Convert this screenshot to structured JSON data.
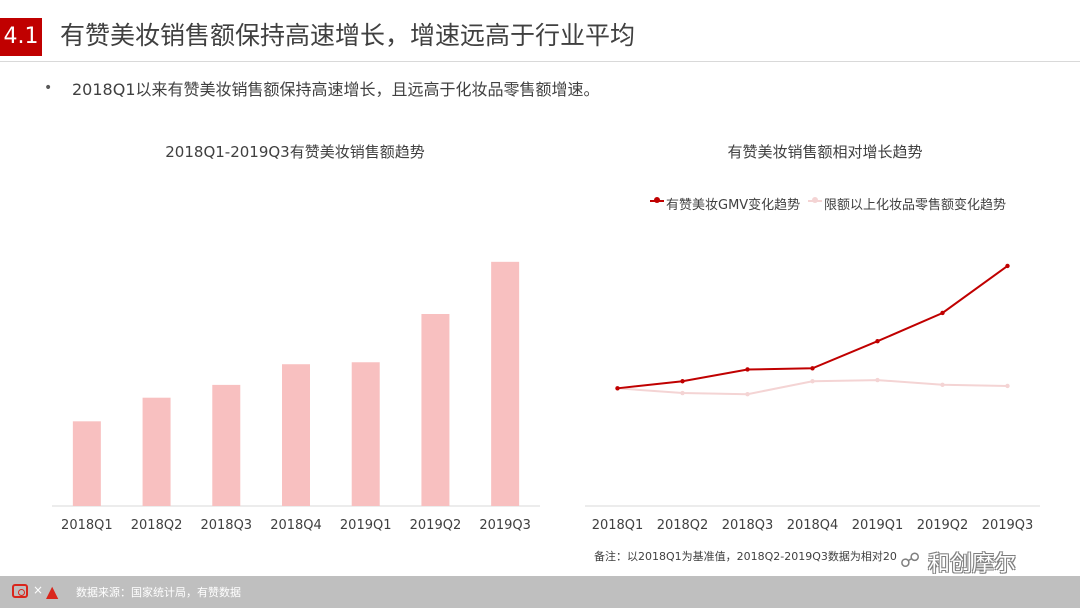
{
  "header": {
    "section_number": "4.1",
    "title": "有赞美妆销售额保持高速增长，增速远高于行业平均"
  },
  "bullet": {
    "dot": "•",
    "text": "2018Q1以来有赞美妆销售额保持高速增长，且远高于化妆品零售额增速。"
  },
  "chart_data": [
    {
      "type": "bar",
      "title": "2018Q1-2019Q3有赞美妆销售额趋势",
      "categories": [
        "2018Q1",
        "2018Q2",
        "2018Q3",
        "2018Q4",
        "2019Q1",
        "2019Q2",
        "2019Q3"
      ],
      "values": [
        86,
        110,
        123,
        144,
        146,
        195,
        248
      ],
      "ylim": [
        0,
        260
      ],
      "color": "#f8c0c0",
      "grid": false
    },
    {
      "type": "line",
      "title": "有赞美妆销售额相对增长趋势",
      "categories": [
        "2018Q1",
        "2018Q2",
        "2018Q3",
        "2018Q4",
        "2019Q1",
        "2019Q2",
        "2019Q3"
      ],
      "series": [
        {
          "name": "有赞美妆GMV变化趋势",
          "color": "#c00000",
          "values": [
            1.0,
            1.06,
            1.16,
            1.17,
            1.4,
            1.64,
            2.04
          ]
        },
        {
          "name": "限额以上化妆品零售额变化趋势",
          "color": "#f4d4d4",
          "values": [
            1.0,
            0.96,
            0.95,
            1.06,
            1.07,
            1.03,
            1.02
          ]
        }
      ],
      "ylim": [
        0.0,
        2.6
      ],
      "legend_position": "top",
      "grid": false
    }
  ],
  "note": "备注：以2018Q1为基准值，2018Q2-2019Q3数据为相对20",
  "watermark": "和创摩尔",
  "footer": {
    "source": "数据来源：国家统计局，有赞数据",
    "separator": "×"
  }
}
